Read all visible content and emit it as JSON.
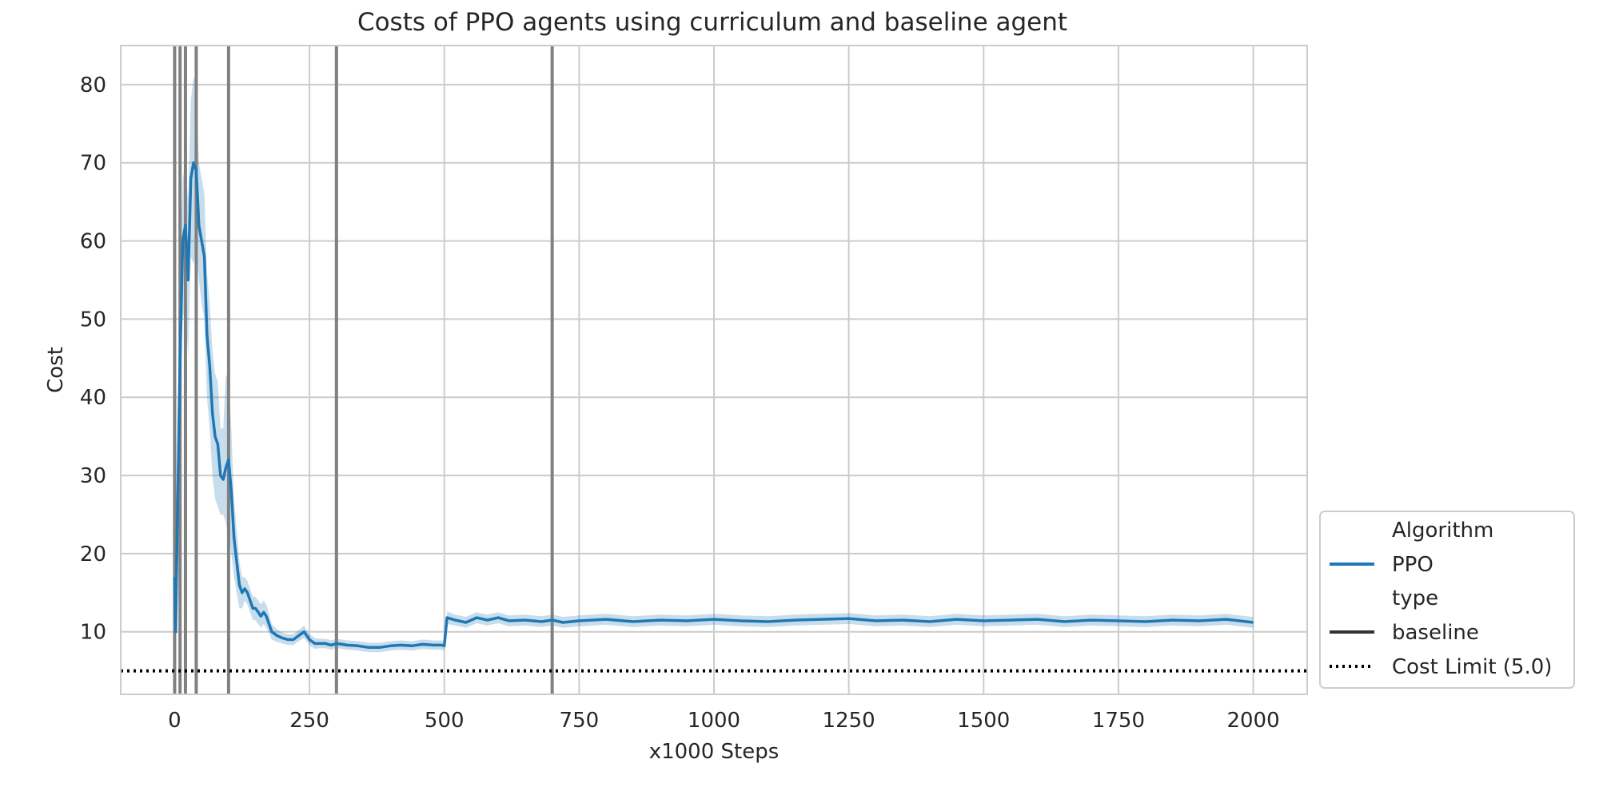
{
  "chart_data": {
    "type": "line",
    "title": "Costs of PPO agents using curriculum and baseline agent",
    "xlabel": "x1000 Steps",
    "ylabel": "Cost",
    "xlim": [
      -100,
      2100
    ],
    "ylim": [
      2,
      85
    ],
    "xticks": [
      0,
      250,
      500,
      750,
      1000,
      1250,
      1500,
      1750,
      2000
    ],
    "yticks": [
      10,
      20,
      30,
      40,
      50,
      60,
      70,
      80
    ],
    "grid": true,
    "legend_position": "lower right (outside plot)",
    "legend": {
      "title_1": "Algorithm",
      "entry_1": "PPO",
      "title_2": "type",
      "entry_2": "baseline",
      "entry_3": "Cost Limit (5.0)"
    },
    "colors": {
      "series": "#1f77b4",
      "band": "#1f77b4",
      "vlines": "#808080",
      "cost_limit": "#000000",
      "grid": "#cccccc",
      "frame": "#cccccc"
    },
    "vertical_lines_x": [
      0,
      10,
      20,
      40,
      100,
      300,
      700
    ],
    "cost_limit": 5.0,
    "series": [
      {
        "name": "PPO",
        "style": "baseline",
        "x": [
          0,
          2,
          5,
          10,
          15,
          20,
          25,
          30,
          35,
          40,
          45,
          50,
          55,
          60,
          65,
          70,
          75,
          80,
          85,
          90,
          95,
          100,
          105,
          110,
          115,
          120,
          125,
          130,
          135,
          140,
          145,
          150,
          155,
          160,
          165,
          170,
          175,
          180,
          190,
          200,
          210,
          220,
          230,
          240,
          250,
          260,
          270,
          280,
          290,
          300,
          320,
          340,
          360,
          380,
          400,
          420,
          440,
          460,
          480,
          495,
          500,
          505,
          520,
          540,
          560,
          580,
          600,
          620,
          650,
          680,
          700,
          720,
          750,
          800,
          850,
          900,
          950,
          1000,
          1050,
          1100,
          1150,
          1200,
          1250,
          1300,
          1350,
          1400,
          1450,
          1500,
          1550,
          1600,
          1650,
          1700,
          1750,
          1800,
          1850,
          1900,
          1950,
          2000
        ],
        "mean": [
          17,
          10,
          24,
          45,
          60,
          62,
          55,
          68,
          70,
          69,
          62,
          60,
          58,
          48,
          44,
          38,
          35,
          34,
          30,
          29.5,
          31,
          32,
          28,
          22,
          19,
          16,
          15,
          15.5,
          15,
          14,
          13,
          13,
          12.5,
          12,
          12.5,
          12,
          11,
          10,
          9.5,
          9.2,
          9,
          9,
          9.5,
          10,
          9,
          8.5,
          8.5,
          8.5,
          8.3,
          8.5,
          8.3,
          8.2,
          8,
          8,
          8.2,
          8.3,
          8.2,
          8.4,
          8.3,
          8.3,
          8.2,
          11.8,
          11.5,
          11.2,
          11.8,
          11.5,
          11.8,
          11.4,
          11.5,
          11.3,
          11.5,
          11.2,
          11.4,
          11.6,
          11.3,
          11.5,
          11.4,
          11.6,
          11.4,
          11.3,
          11.5,
          11.6,
          11.7,
          11.4,
          11.5,
          11.3,
          11.6,
          11.4,
          11.5,
          11.6,
          11.3,
          11.5,
          11.4,
          11.3,
          11.5,
          11.4,
          11.6,
          11.2
        ],
        "lower": [
          12,
          7,
          15,
          35,
          50,
          52,
          45,
          58,
          57,
          59,
          55,
          52,
          50,
          40,
          36,
          30,
          27,
          26,
          25,
          25,
          24,
          22,
          20,
          17,
          15,
          13,
          13,
          14,
          13.5,
          12.5,
          11.5,
          11.5,
          11,
          10.5,
          11,
          10.5,
          9.8,
          9,
          8.7,
          8.5,
          8.3,
          8.3,
          8.8,
          9.2,
          8.3,
          7.8,
          7.9,
          7.9,
          7.7,
          7.9,
          7.7,
          7.6,
          7.4,
          7.4,
          7.6,
          7.7,
          7.6,
          7.8,
          7.7,
          7.7,
          7.6,
          11.0,
          10.8,
          10.5,
          11.1,
          10.8,
          11.1,
          10.7,
          10.8,
          10.6,
          10.8,
          10.5,
          10.7,
          10.9,
          10.6,
          10.8,
          10.7,
          10.9,
          10.7,
          10.6,
          10.8,
          10.9,
          11.0,
          10.7,
          10.8,
          10.6,
          10.9,
          10.7,
          10.8,
          10.9,
          10.6,
          10.8,
          10.7,
          10.6,
          10.8,
          10.7,
          10.9,
          10.5
        ],
        "upper": [
          22,
          14,
          33,
          55,
          68,
          70,
          65,
          78,
          81,
          80,
          70,
          68,
          66,
          56,
          52,
          46,
          43,
          42,
          36,
          36,
          43,
          42,
          36,
          27,
          23,
          19,
          17,
          17,
          16.5,
          15.5,
          14.5,
          14.5,
          14,
          13.5,
          14,
          13.5,
          12.3,
          11,
          10.3,
          9.9,
          9.7,
          9.7,
          10.2,
          10.8,
          9.7,
          9.2,
          9.1,
          9.1,
          8.9,
          9.1,
          8.9,
          8.8,
          8.6,
          8.6,
          8.8,
          8.9,
          8.8,
          9.0,
          8.9,
          8.9,
          8.8,
          12.6,
          12.2,
          11.9,
          12.5,
          12.2,
          12.5,
          12.1,
          12.2,
          12.0,
          12.2,
          11.9,
          12.1,
          12.3,
          12.0,
          12.2,
          12.1,
          12.3,
          12.1,
          12.0,
          12.2,
          12.3,
          12.4,
          12.1,
          12.2,
          12.0,
          12.3,
          12.1,
          12.2,
          12.3,
          12.0,
          12.2,
          12.1,
          12.0,
          12.2,
          12.1,
          12.3,
          11.9
        ]
      }
    ]
  }
}
